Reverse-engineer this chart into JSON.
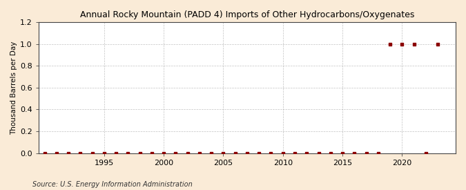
{
  "title": "Annual Rocky Mountain (PADD 4) Imports of Other Hydrocarbons/Oxygenates",
  "ylabel": "Thousand Barrels per Day",
  "source": "Source: U.S. Energy Information Administration",
  "bg_color": "#faebd7",
  "plot_bg_color": "#ffffff",
  "line_color": "#8b0000",
  "marker_color": "#8b0000",
  "grid_color": "#999999",
  "xlim": [
    1989.5,
    2024.5
  ],
  "ylim": [
    0.0,
    1.2
  ],
  "yticks": [
    0.0,
    0.2,
    0.4,
    0.6,
    0.8,
    1.0,
    1.2
  ],
  "xticks": [
    1995,
    2000,
    2005,
    2010,
    2015,
    2020
  ],
  "years": [
    1990,
    1991,
    1992,
    1993,
    1994,
    1995,
    1996,
    1997,
    1998,
    1999,
    2000,
    2001,
    2002,
    2003,
    2004,
    2005,
    2006,
    2007,
    2008,
    2009,
    2010,
    2011,
    2012,
    2013,
    2014,
    2015,
    2016,
    2017,
    2018,
    2019,
    2020,
    2021,
    2022,
    2023
  ],
  "values": [
    0.0,
    0.0,
    0.0,
    0.0,
    0.0,
    0.0,
    0.0,
    0.0,
    0.0,
    0.0,
    0.0,
    0.0,
    0.0,
    0.0,
    0.0,
    0.0,
    0.0,
    0.0,
    0.0,
    0.0,
    0.0,
    0.0,
    0.0,
    0.0,
    0.0,
    0.0,
    0.0,
    0.0,
    0.0,
    1.0,
    1.0,
    1.0,
    0.0,
    1.0
  ]
}
